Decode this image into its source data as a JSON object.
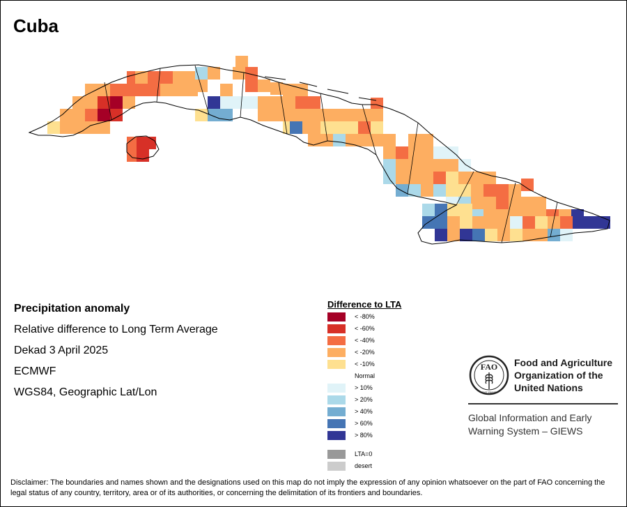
{
  "map": {
    "title": "Cuba",
    "region": "Cuba",
    "projection": "WGS84, Geographic Lat/Lon"
  },
  "info": {
    "title": "Precipitation anomaly",
    "lines": [
      "Relative difference to Long Term Average",
      "Dekad 3 April 2025",
      "ECMWF",
      "WGS84, Geographic Lat/Lon"
    ]
  },
  "legend": {
    "title": "Difference to LTA",
    "items": [
      {
        "key": "lt80",
        "label": "< -80%",
        "color": "#a50026"
      },
      {
        "key": "lt60",
        "label": "< -60%",
        "color": "#d73027"
      },
      {
        "key": "lt40",
        "label": "< -40%",
        "color": "#f46d43"
      },
      {
        "key": "lt20",
        "label": "< -20%",
        "color": "#fdae61"
      },
      {
        "key": "lt10",
        "label": "< -10%",
        "color": "#fee090"
      },
      {
        "key": "normal",
        "label": "Normal",
        "color": "#ffffff"
      },
      {
        "key": "gt10",
        "label": "> 10%",
        "color": "#e0f3f8"
      },
      {
        "key": "gt20",
        "label": "> 20%",
        "color": "#abd9e9"
      },
      {
        "key": "gt40",
        "label": "> 40%",
        "color": "#74add1"
      },
      {
        "key": "gt60",
        "label": "> 60%",
        "color": "#4575b4"
      },
      {
        "key": "gt80",
        "label": "> 80%",
        "color": "#313695"
      },
      {
        "key": "lta0",
        "label": "LTA=0",
        "color": "#999999"
      },
      {
        "key": "desert",
        "label": "desert",
        "color": "#cccccc"
      }
    ]
  },
  "org": {
    "name_lines": [
      "Food and Agriculture",
      "Organization of the",
      "United Nations"
    ],
    "logo_text": "FAO",
    "logo_motto": "FIAT PANIS",
    "system_lines": [
      "Global Information and Early",
      "Warning System – GIEWS"
    ],
    "colors": {
      "logo": "#222222",
      "text": "#1a1a1a"
    }
  },
  "disclaimer": "Disclaimer: The boundaries and names shown and the designations used on this map do not imply the expression of any opinion whatsoever on the part of FAO concerning the legal status of any country, territory, area or of its authorities, or concerning the delimitation of its frontiers and boundaries."
}
